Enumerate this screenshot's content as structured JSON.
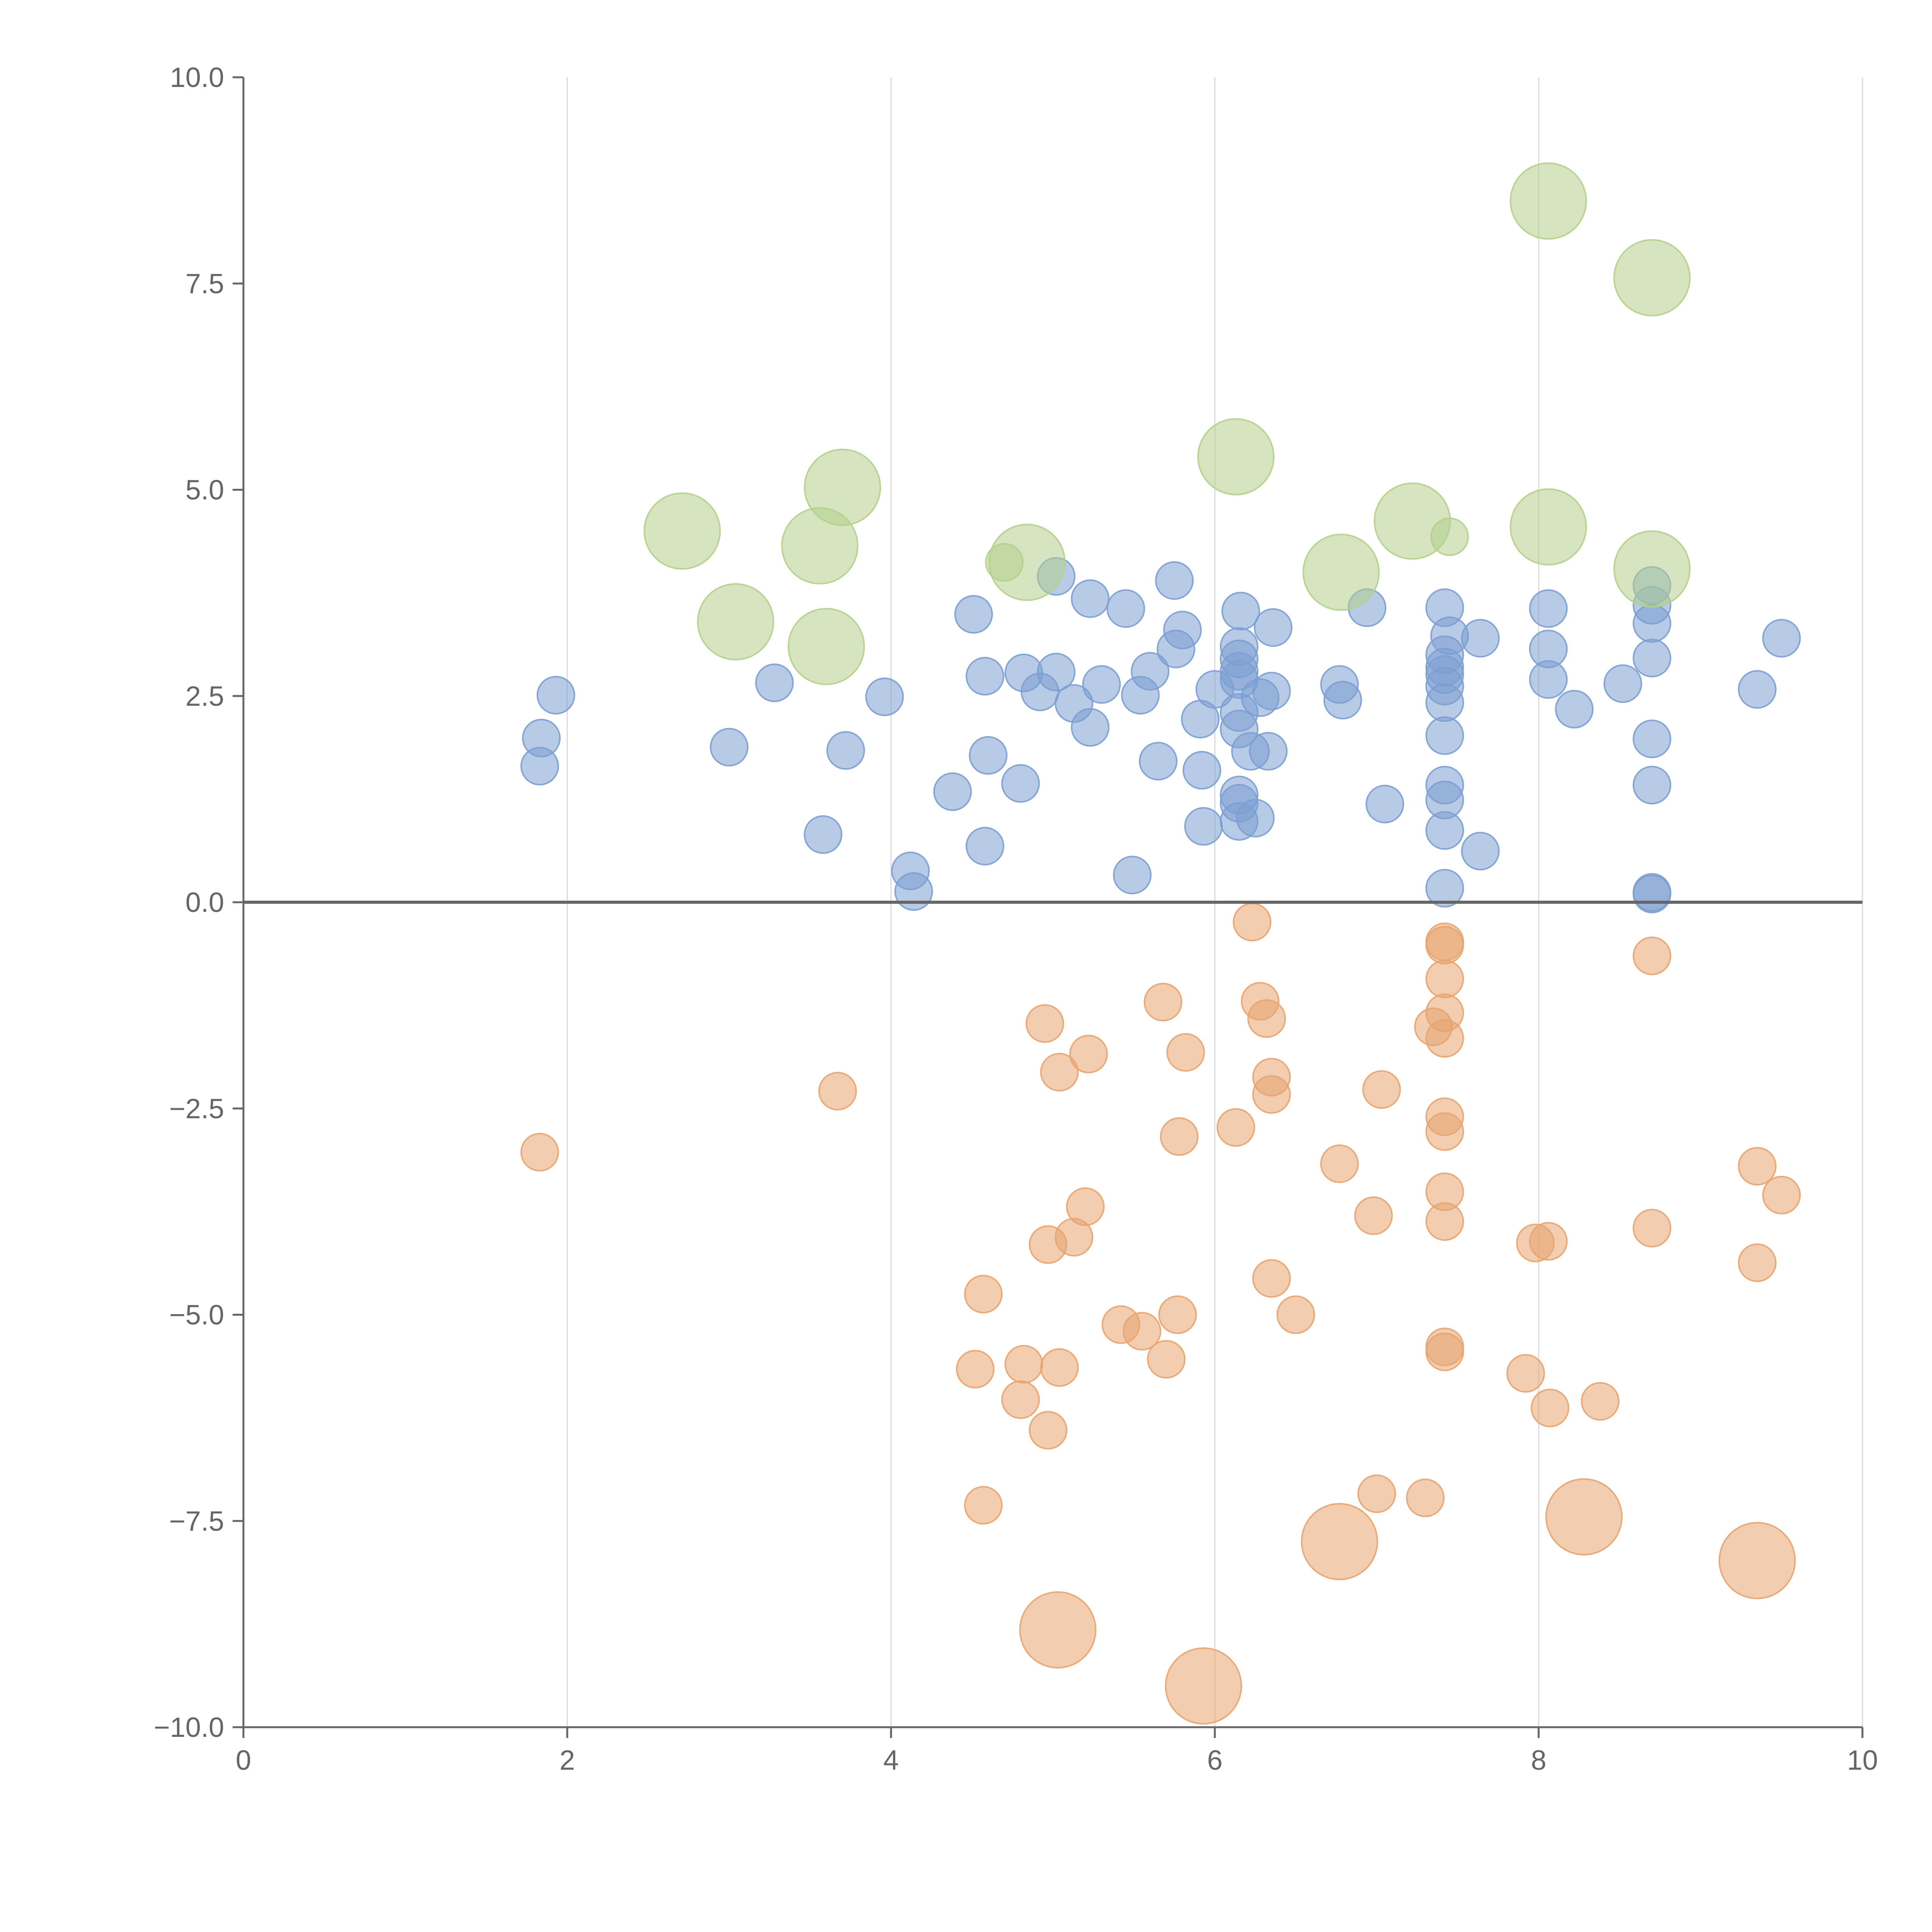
{
  "chart_data": {
    "type": "scatter",
    "title": "",
    "xlabel": "",
    "ylabel": "",
    "xlim": [
      0,
      10
    ],
    "ylim": [
      -10,
      10
    ],
    "x_ticks": [
      0,
      2,
      4,
      6,
      8,
      10
    ],
    "y_ticks": [
      -10,
      -7.5,
      -5,
      -2.5,
      0,
      2.5,
      5,
      7.5,
      10
    ],
    "x_tick_labels": [
      "0",
      "2",
      "4",
      "6",
      "8",
      "10"
    ],
    "y_tick_labels": [
      "−10.0",
      "−7.5",
      "−5.0",
      "−2.5",
      "0.0",
      "2.5",
      "5.0",
      "7.5",
      "10.0"
    ],
    "grid": "vertical",
    "zero_line": true,
    "legend": "none",
    "series": [
      {
        "color": "#7c9fd2",
        "points": [
          [
            1.83,
            1.65,
            1
          ],
          [
            1.84,
            1.99,
            1
          ],
          [
            1.93,
            2.51,
            1
          ],
          [
            3.0,
            1.88,
            1
          ],
          [
            3.28,
            2.66,
            1
          ],
          [
            3.58,
            0.82,
            1
          ],
          [
            3.72,
            1.84,
            1
          ],
          [
            3.96,
            2.49,
            1
          ],
          [
            4.12,
            0.38,
            1
          ],
          [
            4.14,
            0.13,
            1
          ],
          [
            4.38,
            1.34,
            1
          ],
          [
            4.51,
            3.49,
            1
          ],
          [
            4.58,
            2.74,
            1
          ],
          [
            4.58,
            0.68,
            1
          ],
          [
            4.6,
            1.78,
            1
          ],
          [
            4.8,
            1.44,
            1
          ],
          [
            4.82,
            2.78,
            1
          ],
          [
            4.92,
            2.55,
            1
          ],
          [
            5.02,
            2.79,
            1
          ],
          [
            5.02,
            3.95,
            1
          ],
          [
            5.13,
            2.41,
            1
          ],
          [
            5.23,
            2.12,
            1
          ],
          [
            5.23,
            3.68,
            1
          ],
          [
            5.3,
            2.64,
            1
          ],
          [
            5.45,
            3.56,
            1
          ],
          [
            5.49,
            0.33,
            1
          ],
          [
            5.54,
            2.51,
            1
          ],
          [
            5.6,
            2.8,
            1
          ],
          [
            5.65,
            1.71,
            1
          ],
          [
            5.75,
            3.9,
            1
          ],
          [
            5.76,
            3.07,
            1
          ],
          [
            5.8,
            3.3,
            1
          ],
          [
            5.91,
            2.22,
            1
          ],
          [
            5.92,
            1.6,
            1
          ],
          [
            5.93,
            0.92,
            1
          ],
          [
            6.0,
            2.58,
            1
          ],
          [
            6.15,
            2.1,
            1
          ],
          [
            6.15,
            2.3,
            1
          ],
          [
            6.15,
            2.7,
            1
          ],
          [
            6.15,
            2.8,
            1
          ],
          [
            6.15,
            2.95,
            1
          ],
          [
            6.15,
            3.1,
            1
          ],
          [
            6.15,
            1.3,
            1
          ],
          [
            6.15,
            1.2,
            1
          ],
          [
            6.15,
            0.98,
            1
          ],
          [
            6.16,
            3.53,
            1
          ],
          [
            6.22,
            1.83,
            1
          ],
          [
            6.25,
            1.02,
            1
          ],
          [
            6.28,
            2.48,
            1
          ],
          [
            6.33,
            1.83,
            1
          ],
          [
            6.35,
            2.56,
            1
          ],
          [
            6.36,
            3.33,
            1
          ],
          [
            6.77,
            2.64,
            1
          ],
          [
            6.79,
            2.45,
            1
          ],
          [
            6.94,
            3.57,
            1
          ],
          [
            7.05,
            1.19,
            1
          ],
          [
            7.42,
            3.57,
            1
          ],
          [
            7.42,
            3.0,
            1
          ],
          [
            7.42,
            2.85,
            1
          ],
          [
            7.42,
            2.76,
            1
          ],
          [
            7.42,
            2.62,
            1
          ],
          [
            7.42,
            2.42,
            1
          ],
          [
            7.42,
            2.02,
            1
          ],
          [
            7.42,
            1.42,
            1
          ],
          [
            7.42,
            1.24,
            1
          ],
          [
            7.42,
            0.87,
            1
          ],
          [
            7.42,
            0.17,
            1
          ],
          [
            7.45,
            3.23,
            1
          ],
          [
            7.64,
            3.2,
            1
          ],
          [
            7.64,
            0.62,
            1
          ],
          [
            8.06,
            3.56,
            1
          ],
          [
            8.06,
            3.07,
            1
          ],
          [
            8.06,
            2.7,
            1
          ],
          [
            8.22,
            2.34,
            1
          ],
          [
            8.52,
            2.65,
            1
          ],
          [
            8.7,
            3.84,
            1
          ],
          [
            8.7,
            3.6,
            1
          ],
          [
            8.7,
            3.38,
            1
          ],
          [
            8.7,
            2.96,
            1
          ],
          [
            8.7,
            1.98,
            1
          ],
          [
            8.7,
            1.42,
            1
          ],
          [
            8.7,
            0.12,
            1
          ],
          [
            8.7,
            0.1,
            1
          ],
          [
            9.35,
            2.58,
            1
          ],
          [
            9.5,
            3.2,
            1
          ]
        ]
      },
      {
        "color": "#e8a46f",
        "points": [
          [
            1.83,
            -3.03,
            1
          ],
          [
            3.67,
            -2.29,
            1
          ],
          [
            4.52,
            -5.66,
            1
          ],
          [
            4.57,
            -4.75,
            1
          ],
          [
            4.57,
            -7.31,
            1
          ],
          [
            4.8,
            -6.03,
            1
          ],
          [
            4.82,
            -5.6,
            1
          ],
          [
            4.95,
            -1.47,
            1
          ],
          [
            4.97,
            -4.15,
            1
          ],
          [
            4.97,
            -6.4,
            1
          ],
          [
            5.04,
            -2.06,
            1
          ],
          [
            5.04,
            -5.64,
            1
          ],
          [
            5.13,
            -4.06,
            1
          ],
          [
            5.2,
            -3.69,
            1
          ],
          [
            5.22,
            -1.84,
            1
          ],
          [
            5.42,
            -5.12,
            1
          ],
          [
            5.55,
            -5.2,
            1
          ],
          [
            5.68,
            -1.21,
            1
          ],
          [
            5.7,
            -5.54,
            1
          ],
          [
            5.77,
            -5.0,
            1
          ],
          [
            5.78,
            -2.84,
            1
          ],
          [
            5.82,
            -1.82,
            1
          ],
          [
            6.13,
            -2.73,
            1
          ],
          [
            6.23,
            -0.24,
            1
          ],
          [
            6.28,
            -1.2,
            1
          ],
          [
            6.32,
            -1.41,
            1
          ],
          [
            6.35,
            -2.12,
            1
          ],
          [
            6.35,
            -2.33,
            1
          ],
          [
            6.35,
            -4.56,
            1
          ],
          [
            6.5,
            -5.0,
            1
          ],
          [
            6.77,
            -3.17,
            1
          ],
          [
            6.98,
            -3.8,
            1
          ],
          [
            7.0,
            -7.17,
            1
          ],
          [
            7.03,
            -2.27,
            1
          ],
          [
            7.3,
            -7.22,
            1
          ],
          [
            7.35,
            -1.51,
            1
          ],
          [
            7.42,
            -0.48,
            1
          ],
          [
            7.42,
            -0.52,
            1
          ],
          [
            7.42,
            -0.93,
            1
          ],
          [
            7.42,
            -1.34,
            1
          ],
          [
            7.42,
            -1.65,
            1
          ],
          [
            7.42,
            -2.6,
            1
          ],
          [
            7.42,
            -2.78,
            1
          ],
          [
            7.42,
            -3.51,
            1
          ],
          [
            7.42,
            -3.87,
            1
          ],
          [
            7.42,
            -5.39,
            1
          ],
          [
            7.42,
            -5.45,
            1
          ],
          [
            7.92,
            -5.71,
            1
          ],
          [
            7.98,
            -4.13,
            1
          ],
          [
            8.06,
            -4.11,
            1
          ],
          [
            8.07,
            -6.13,
            1
          ],
          [
            8.38,
            -6.05,
            1
          ],
          [
            8.7,
            -0.65,
            1
          ],
          [
            8.7,
            -3.95,
            1
          ],
          [
            9.35,
            -3.2,
            1
          ],
          [
            9.35,
            -4.37,
            1
          ],
          [
            9.5,
            -3.55,
            1
          ],
          [
            5.03,
            -8.82,
            2
          ],
          [
            5.93,
            -9.5,
            2
          ],
          [
            6.77,
            -7.75,
            2
          ],
          [
            8.28,
            -7.45,
            2
          ],
          [
            9.35,
            -7.98,
            2
          ]
        ]
      },
      {
        "color": "#b5d08c",
        "points": [
          [
            4.7,
            4.12,
            1
          ],
          [
            7.45,
            4.43,
            1
          ],
          [
            2.71,
            4.5,
            2
          ],
          [
            3.04,
            3.4,
            2
          ],
          [
            3.56,
            4.32,
            2
          ],
          [
            3.6,
            3.1,
            2
          ],
          [
            3.7,
            5.03,
            2
          ],
          [
            4.84,
            4.12,
            2
          ],
          [
            6.13,
            5.4,
            2
          ],
          [
            6.78,
            4.0,
            2
          ],
          [
            7.22,
            4.62,
            2
          ],
          [
            8.06,
            4.55,
            2
          ],
          [
            8.06,
            8.5,
            2
          ],
          [
            8.7,
            7.57,
            2
          ],
          [
            8.7,
            4.04,
            2
          ]
        ]
      }
    ]
  }
}
